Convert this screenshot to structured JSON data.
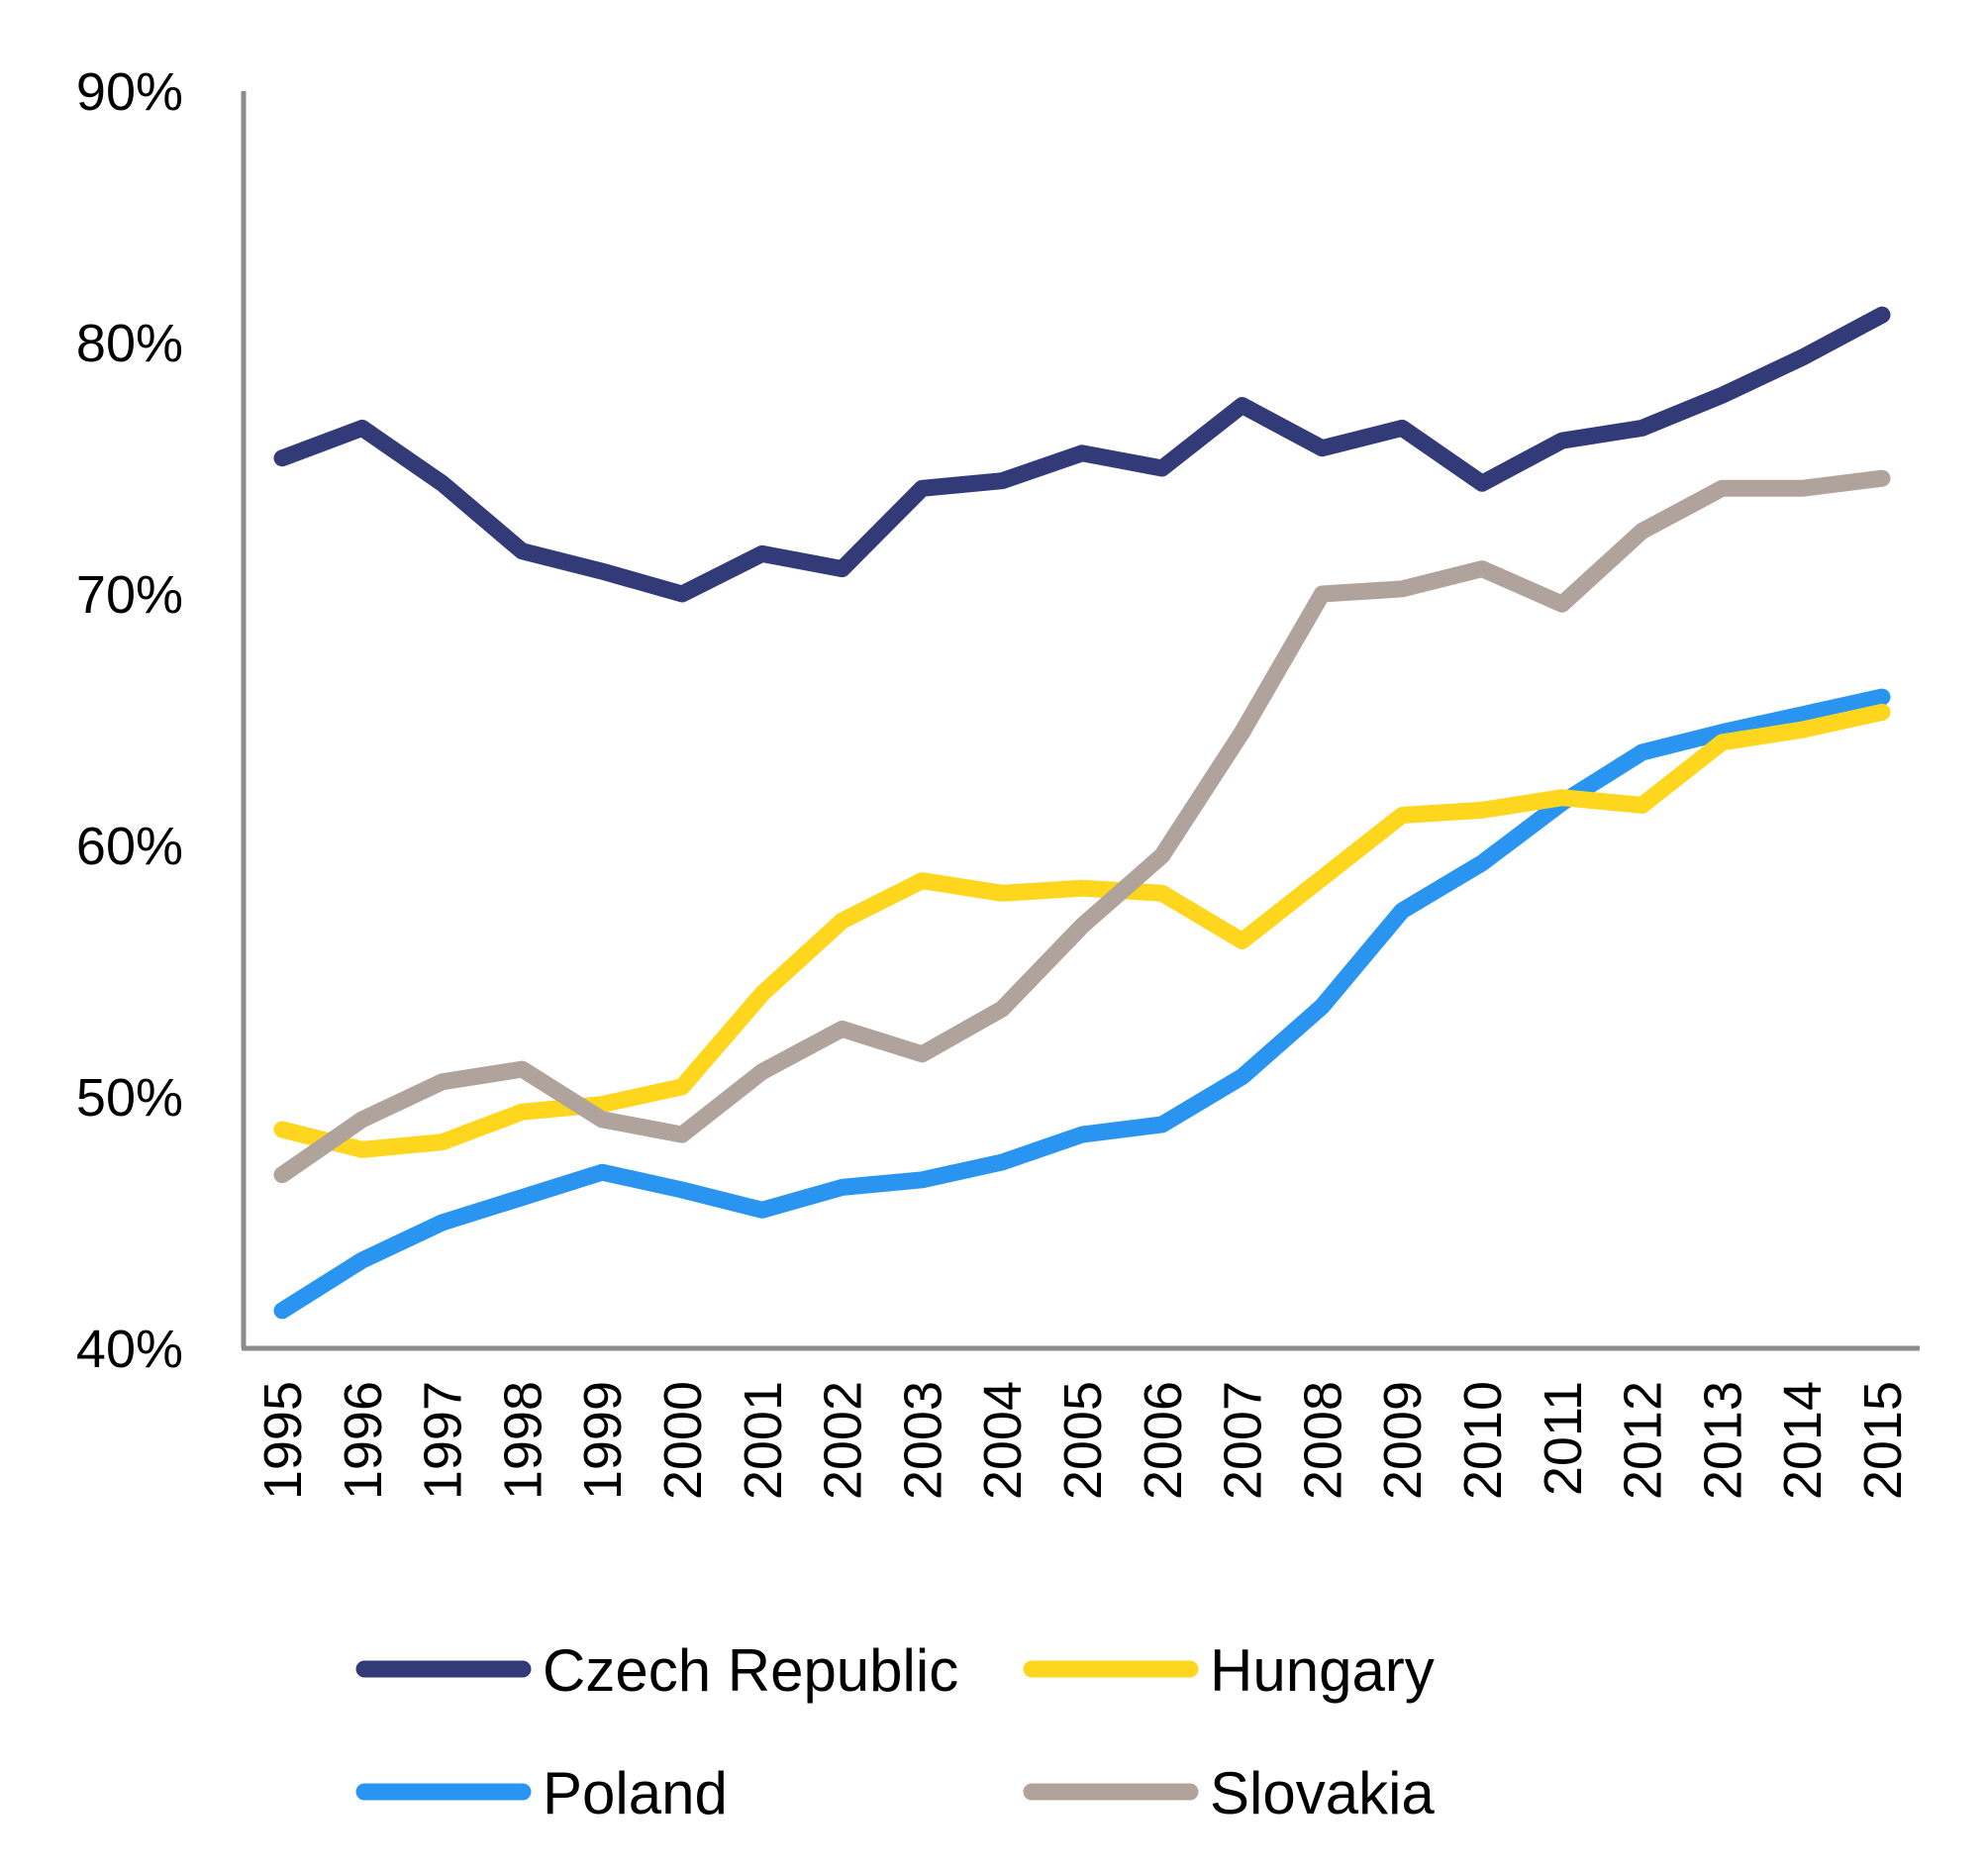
{
  "chart_data": {
    "type": "line",
    "title": "",
    "xlabel": "",
    "ylabel": "",
    "ylim": [
      40,
      90
    ],
    "yticks": [
      40,
      50,
      60,
      70,
      80,
      90
    ],
    "ytick_labels": [
      "40%",
      "50%",
      "60%",
      "70%",
      "80%",
      "90%"
    ],
    "y_unit": "%",
    "grid": false,
    "legend_position": "bottom",
    "x": [
      "1995",
      "1996",
      "1997",
      "1998",
      "1999",
      "2000",
      "2001",
      "2002",
      "2003",
      "2004",
      "2005",
      "2006",
      "2007",
      "2008",
      "2009",
      "2010",
      "2011",
      "2012",
      "2013",
      "2014",
      "2015"
    ],
    "series": [
      {
        "name": "Czech Republic",
        "color": "#323A78",
        "values": [
          75.4,
          76.6,
          74.4,
          71.7,
          70.9,
          70.0,
          71.6,
          71.0,
          74.2,
          74.5,
          75.6,
          75.0,
          77.5,
          75.8,
          76.6,
          74.4,
          76.1,
          76.6,
          77.9,
          79.4,
          81.1
        ]
      },
      {
        "name": "Hungary",
        "color": "#FFD61E",
        "values": [
          48.7,
          47.9,
          48.2,
          49.4,
          49.7,
          50.4,
          54.1,
          57.0,
          58.6,
          58.1,
          58.3,
          58.1,
          56.2,
          58.7,
          61.2,
          61.4,
          61.9,
          61.6,
          64.1,
          64.6,
          65.3
        ]
      },
      {
        "name": "Poland",
        "color": "#2A95F0",
        "values": [
          41.5,
          43.5,
          45.0,
          46.0,
          47.0,
          46.3,
          45.5,
          46.4,
          46.7,
          47.4,
          48.5,
          48.9,
          50.8,
          53.6,
          57.4,
          59.3,
          61.7,
          63.7,
          64.5,
          65.2,
          65.9
        ]
      },
      {
        "name": "Slovakia",
        "color": "#B0A39C",
        "values": [
          46.9,
          49.1,
          50.6,
          51.1,
          49.1,
          48.5,
          51.0,
          52.7,
          51.7,
          53.5,
          56.8,
          59.6,
          64.5,
          70.0,
          70.2,
          71.0,
          69.6,
          72.5,
          74.2,
          74.2,
          74.6
        ]
      }
    ],
    "axis_color": "#8C8C8C"
  }
}
